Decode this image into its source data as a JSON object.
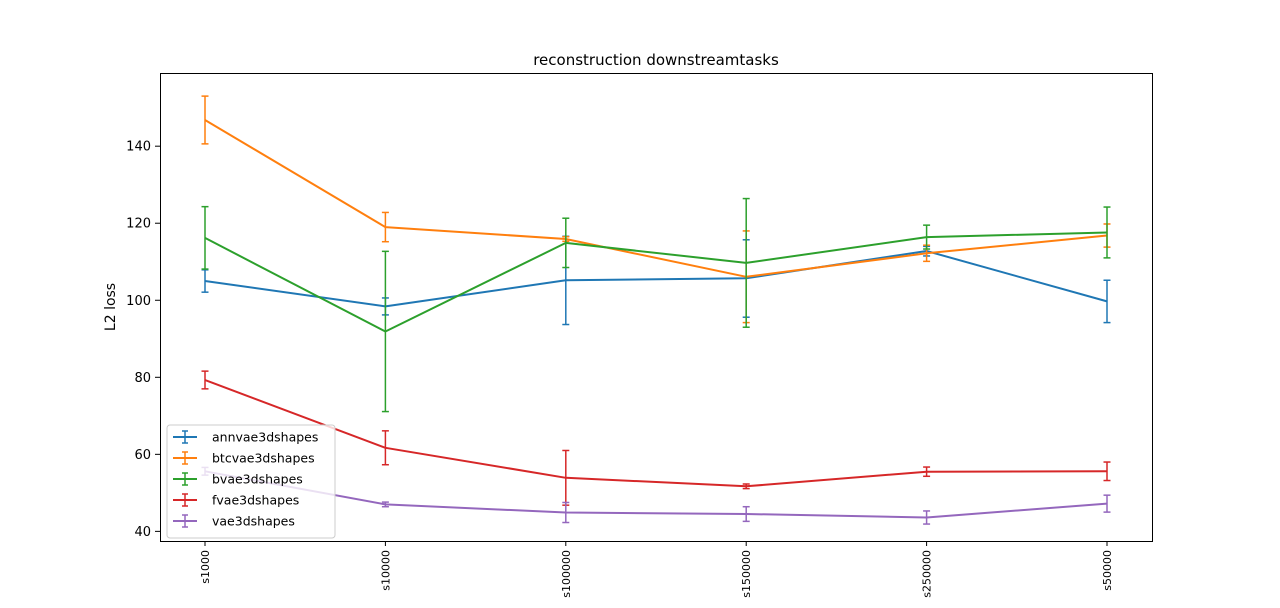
{
  "chart_data": {
    "type": "line",
    "title": "reconstruction downstreamtasks",
    "xlabel": "",
    "ylabel": "L2 loss",
    "categories": [
      "s1000",
      "s10000",
      "s100000",
      "s150000",
      "s250000",
      "s50000"
    ],
    "ylim": [
      37.5,
      159
    ],
    "yticks": [
      40,
      60,
      80,
      100,
      120,
      140
    ],
    "grid": false,
    "legend_position": "lower-left",
    "error_bars": true,
    "series": [
      {
        "name": "annvae3dshapes",
        "color": "#1f77b4",
        "values": [
          105.0,
          98.4,
          105.2,
          105.7,
          112.8,
          99.7
        ],
        "err_low": [
          102.1,
          96.2,
          93.7,
          95.6,
          111.5,
          94.2
        ],
        "err_high": [
          107.9,
          100.6,
          116.6,
          115.7,
          114.0,
          105.2
        ]
      },
      {
        "name": "btcvae3dshapes",
        "color": "#ff7f0e",
        "values": [
          146.8,
          119.0,
          115.9,
          106.1,
          112.2,
          116.8
        ],
        "err_low": [
          140.6,
          115.2,
          115.3,
          94.2,
          110.1,
          113.8
        ],
        "err_high": [
          153.0,
          122.8,
          116.5,
          118.0,
          114.3,
          119.8
        ]
      },
      {
        "name": "bvae3dshapes",
        "color": "#2ca02c",
        "values": [
          116.2,
          91.9,
          114.9,
          109.7,
          116.4,
          117.6
        ],
        "err_low": [
          108.1,
          71.1,
          108.5,
          93.0,
          113.3,
          111.0
        ],
        "err_high": [
          124.3,
          112.7,
          121.3,
          126.4,
          119.5,
          124.2
        ]
      },
      {
        "name": "fvae3dshapes",
        "color": "#d62728",
        "values": [
          79.3,
          61.7,
          53.9,
          51.7,
          55.5,
          55.6
        ],
        "err_low": [
          77.0,
          57.3,
          46.8,
          51.1,
          54.3,
          53.2
        ],
        "err_high": [
          81.6,
          66.1,
          61.0,
          52.3,
          56.7,
          58.0
        ]
      },
      {
        "name": "vae3dshapes",
        "color": "#9467bd",
        "values": [
          55.6,
          47.0,
          44.9,
          44.5,
          43.6,
          47.2
        ],
        "err_low": [
          54.6,
          46.4,
          42.3,
          42.6,
          41.9,
          45.0
        ],
        "err_high": [
          56.6,
          47.6,
          47.5,
          46.4,
          45.3,
          49.4
        ]
      }
    ]
  }
}
